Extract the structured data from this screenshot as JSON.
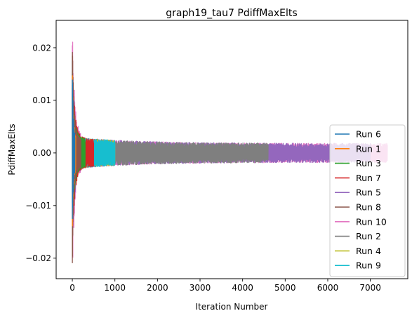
{
  "chart_data": {
    "type": "line",
    "title": "graph19_tau7 PdiffMaxElts",
    "xlabel": "Iteration Number",
    "ylabel": "PdiffMaxElts",
    "xlim": [
      -380,
      7880
    ],
    "ylim": [
      -0.0239,
      0.0252
    ],
    "xticks": [
      0,
      1000,
      2000,
      3000,
      4000,
      5000,
      6000,
      7000
    ],
    "yticks": [
      -0.02,
      -0.01,
      0.0,
      0.01,
      0.02
    ],
    "ytick_labels": [
      "−0.02",
      "−0.01",
      "0.00",
      "0.01",
      "0.02"
    ],
    "grid": false,
    "legend_position": "lower right",
    "series": [
      {
        "name": "Run 6",
        "color": "#1f77b4",
        "length": 60,
        "amp0": 0.016,
        "tau": 20
      },
      {
        "name": "Run 1",
        "color": "#ff7f0e",
        "length": 80,
        "amp0": 0.015,
        "tau": 25
      },
      {
        "name": "Run 3",
        "color": "#2ca02c",
        "length": 300,
        "amp0": 0.016,
        "tau": 45
      },
      {
        "name": "Run 7",
        "color": "#d62728",
        "length": 500,
        "amp0": 0.016,
        "tau": 60
      },
      {
        "name": "Run 5",
        "color": "#9467bd",
        "length": 7000,
        "amp0": 0.017,
        "tau": 55
      },
      {
        "name": "Run 8",
        "color": "#8c564b",
        "length": 200,
        "amp0": 0.0215,
        "tau": 35
      },
      {
        "name": "Run 10",
        "color": "#e377c2",
        "length": 7400,
        "amp0": 0.023,
        "tau": 60
      },
      {
        "name": "Run 2",
        "color": "#7f7f7f",
        "length": 4600,
        "amp0": 0.016,
        "tau": 55
      },
      {
        "name": "Run 4",
        "color": "#bcbd22",
        "length": 1000,
        "amp0": 0.016,
        "tau": 50
      },
      {
        "name": "Run 9",
        "color": "#17becf",
        "length": 1000,
        "amp0": 0.0175,
        "tau": 40
      }
    ]
  }
}
